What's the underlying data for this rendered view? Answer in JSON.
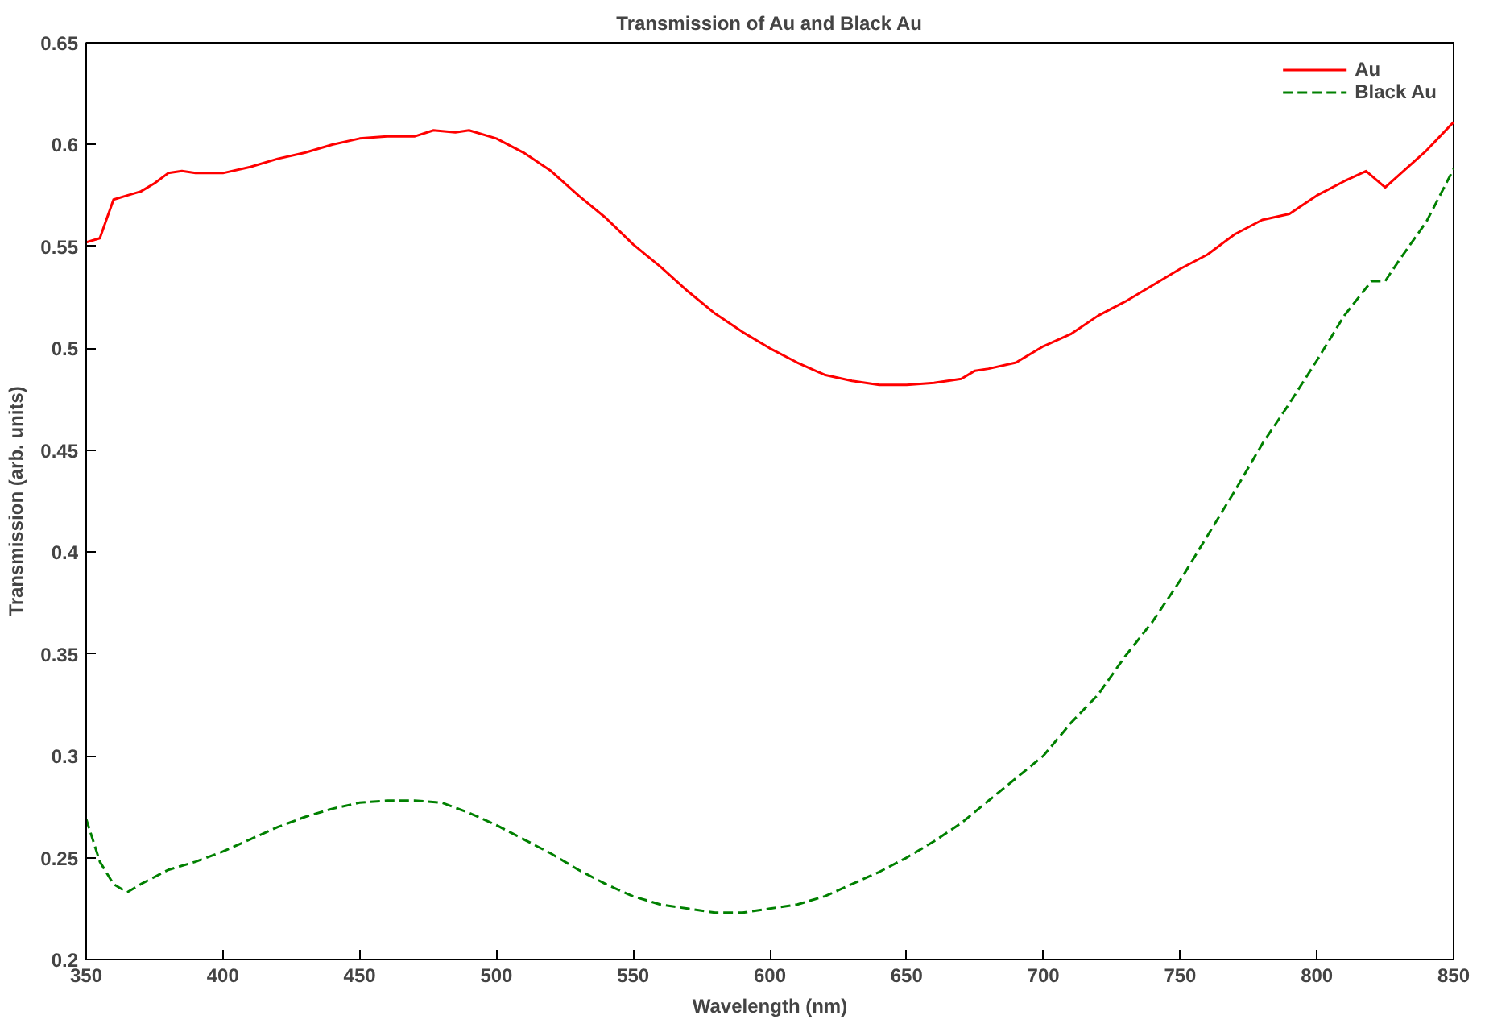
{
  "chart_data": {
    "type": "line",
    "title": "Transmission of Au and Black Au",
    "xlabel": "Wavelength (nm)",
    "ylabel": "Transmission (arb. units)",
    "xlim": [
      350,
      850
    ],
    "ylim": [
      0.2,
      0.65
    ],
    "xticks": [
      350,
      400,
      450,
      500,
      550,
      600,
      650,
      700,
      750,
      800,
      850
    ],
    "yticks": [
      0.2,
      {
        "value": 0.25,
        "label": "0.25"
      },
      {
        "value": 0.3,
        "label": "0.3"
      },
      {
        "value": 0.35,
        "label": "0.35"
      },
      {
        "value": 0.4,
        "label": "0.4"
      },
      {
        "value": 0.45,
        "label": "0.45"
      },
      {
        "value": 0.5,
        "label": "0.5"
      },
      {
        "value": 0.55,
        "label": "0.55"
      },
      {
        "value": 0.6,
        "label": "0.6"
      },
      {
        "value": 0.65,
        "label": "0.65"
      }
    ],
    "grid": false,
    "legend": "top right",
    "marker": "none",
    "series": [
      {
        "name": "Au",
        "color": "#ff0000",
        "line_style": "solid",
        "x": [
          350,
          355,
          360,
          365,
          370,
          375,
          380,
          385,
          390,
          400,
          410,
          420,
          430,
          440,
          450,
          460,
          470,
          477,
          485,
          490,
          500,
          510,
          520,
          530,
          540,
          550,
          560,
          570,
          580,
          590,
          600,
          610,
          620,
          630,
          640,
          650,
          660,
          670,
          675,
          680,
          690,
          700,
          710,
          720,
          730,
          740,
          750,
          760,
          770,
          780,
          790,
          800,
          810,
          818,
          825,
          830,
          840,
          850
        ],
        "values": [
          0.552,
          0.554,
          0.573,
          0.575,
          0.577,
          0.581,
          0.586,
          0.587,
          0.586,
          0.586,
          0.589,
          0.593,
          0.596,
          0.6,
          0.603,
          0.604,
          0.604,
          0.607,
          0.606,
          0.607,
          0.603,
          0.596,
          0.587,
          0.575,
          0.564,
          0.551,
          0.54,
          0.528,
          0.517,
          0.508,
          0.5,
          0.493,
          0.487,
          0.484,
          0.482,
          0.482,
          0.483,
          0.485,
          0.489,
          0.49,
          0.493,
          0.501,
          0.507,
          0.516,
          0.523,
          0.531,
          0.539,
          0.546,
          0.556,
          0.563,
          0.566,
          0.575,
          0.582,
          0.587,
          0.579,
          0.585,
          0.597,
          0.611
        ]
      },
      {
        "name": "Black Au",
        "color": "#008000",
        "line_style": "dashed",
        "x": [
          350,
          355,
          360,
          365,
          370,
          380,
          390,
          400,
          410,
          420,
          430,
          440,
          450,
          460,
          470,
          480,
          490,
          500,
          510,
          520,
          530,
          540,
          550,
          560,
          570,
          580,
          590,
          600,
          610,
          620,
          630,
          640,
          650,
          660,
          670,
          680,
          690,
          700,
          710,
          720,
          730,
          740,
          750,
          760,
          770,
          780,
          790,
          800,
          810,
          820,
          825,
          830,
          840,
          850
        ],
        "values": [
          0.269,
          0.248,
          0.237,
          0.233,
          0.237,
          0.244,
          0.248,
          0.253,
          0.259,
          0.265,
          0.27,
          0.274,
          0.277,
          0.278,
          0.278,
          0.277,
          0.272,
          0.266,
          0.259,
          0.252,
          0.244,
          0.237,
          0.231,
          0.227,
          0.225,
          0.223,
          0.223,
          0.225,
          0.227,
          0.231,
          0.237,
          0.243,
          0.25,
          0.258,
          0.267,
          0.278,
          0.289,
          0.3,
          0.316,
          0.33,
          0.349,
          0.366,
          0.386,
          0.408,
          0.43,
          0.453,
          0.473,
          0.494,
          0.516,
          0.533,
          0.533,
          0.543,
          0.562,
          0.588
        ]
      }
    ]
  }
}
